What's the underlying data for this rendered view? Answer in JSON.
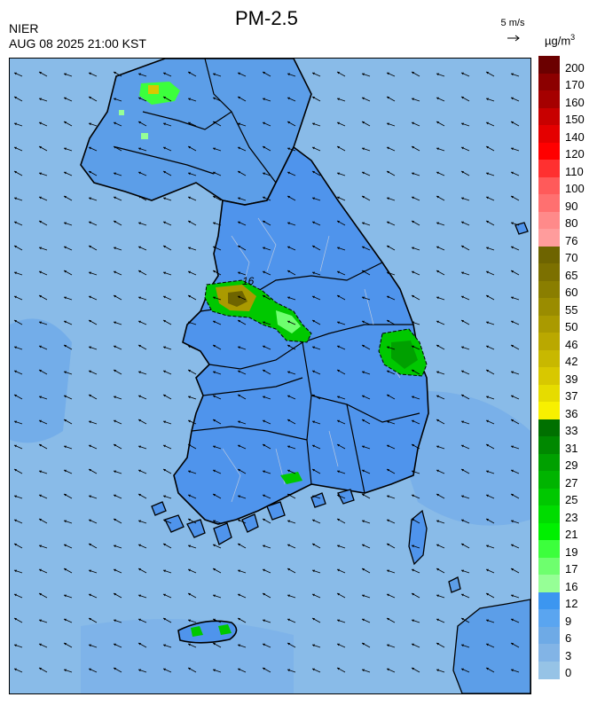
{
  "header": {
    "organization": "NIER",
    "timestamp": "AUG 08 2025 21:00 KST",
    "title": "PM-2.5",
    "wind_scale_label": "5 m/s",
    "unit_prefix": "µg/m",
    "unit_exponent": "3"
  },
  "map": {
    "contour_label": "16",
    "wind_direction": "from east-southeast toward west-northwest"
  },
  "legend": {
    "levels": [
      {
        "value": "200",
        "color": "#6b0000"
      },
      {
        "value": "170",
        "color": "#8c0000"
      },
      {
        "value": "160",
        "color": "#a50000"
      },
      {
        "value": "150",
        "color": "#c80000"
      },
      {
        "value": "140",
        "color": "#e40000"
      },
      {
        "value": "120",
        "color": "#ff0000"
      },
      {
        "value": "110",
        "color": "#ff3030"
      },
      {
        "value": "100",
        "color": "#ff5a5a"
      },
      {
        "value": "90",
        "color": "#ff7070"
      },
      {
        "value": "80",
        "color": "#ff8a8a"
      },
      {
        "value": "76",
        "color": "#ff9c9c"
      },
      {
        "value": "70",
        "color": "#6e6400"
      },
      {
        "value": "65",
        "color": "#7c7000"
      },
      {
        "value": "60",
        "color": "#8a7e00"
      },
      {
        "value": "55",
        "color": "#9a8c00"
      },
      {
        "value": "50",
        "color": "#aa9a00"
      },
      {
        "value": "46",
        "color": "#baa800"
      },
      {
        "value": "42",
        "color": "#c8b800"
      },
      {
        "value": "39",
        "color": "#d8c800"
      },
      {
        "value": "37",
        "color": "#e6dc00"
      },
      {
        "value": "36",
        "color": "#f8f000"
      },
      {
        "value": "33",
        "color": "#007000"
      },
      {
        "value": "31",
        "color": "#008800"
      },
      {
        "value": "29",
        "color": "#00a000"
      },
      {
        "value": "27",
        "color": "#00b400"
      },
      {
        "value": "25",
        "color": "#00c800"
      },
      {
        "value": "23",
        "color": "#00dc00"
      },
      {
        "value": "21",
        "color": "#00f000"
      },
      {
        "value": "19",
        "color": "#3cff3c"
      },
      {
        "value": "17",
        "color": "#6eff6e"
      },
      {
        "value": "16",
        "color": "#96ff96"
      },
      {
        "value": "12",
        "color": "#3c96f0"
      },
      {
        "value": "9",
        "color": "#5aa5f0"
      },
      {
        "value": "6",
        "color": "#6eaae6"
      },
      {
        "value": "3",
        "color": "#82b4e6"
      },
      {
        "value": "0",
        "color": "#96c3e6"
      }
    ]
  }
}
